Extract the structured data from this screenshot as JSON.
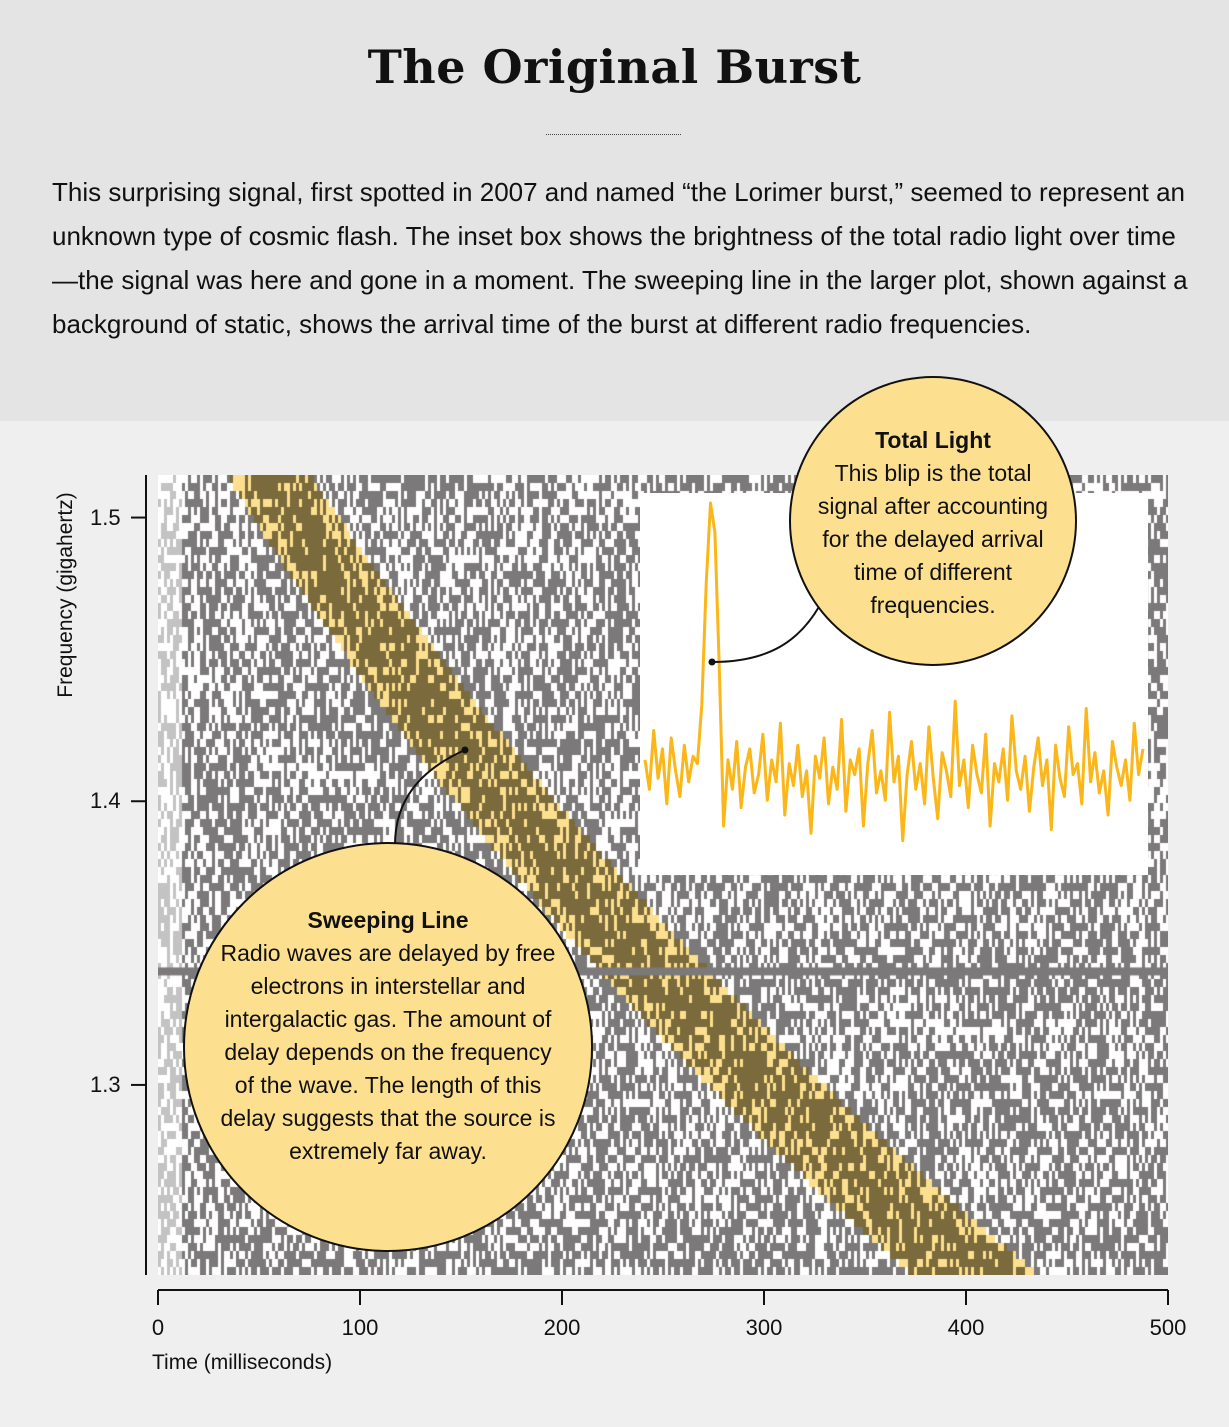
{
  "header": {
    "title": "The Original Burst",
    "description": "This surprising signal, first spotted in 2007 and named “the Lorimer burst,” seemed to represent an unknown type of cosmic flash. The inset box shows the brightness of the total radio light over time—the signal was here and gone in a moment. The sweeping line in the larger plot, shown against a background of static, shows the arrival time of the burst at different radio frequencies."
  },
  "callouts": {
    "total_light": {
      "title": "Total Light",
      "text": "This blip is the total signal after accounting for the delayed arrival time of different frequencies."
    },
    "sweeping_line": {
      "title": "Sweeping Line",
      "text": "Radio waves are delayed by free electrons in interstellar and intergalactic gas. The amount of delay depends on the frequency of the wave. The length of this delay suggests that the source is extremely far away."
    }
  },
  "colors": {
    "static": "#7b7979",
    "band": "#fde08f",
    "band_signal": "#7a6a3c",
    "inset_line": "#fbb61a",
    "header_bg": "#e4e4e4",
    "page_bg": "#efefef"
  },
  "chart_data": [
    {
      "type": "heatmap",
      "xlabel": "Time (milliseconds)",
      "ylabel": "Frequency (gigahertz)",
      "xlim": [
        0,
        500
      ],
      "ylim": [
        1.233,
        1.515
      ],
      "xticks": [
        "0",
        "100",
        "200",
        "300",
        "400",
        "500"
      ],
      "yticks": [
        "1.3",
        "1.4",
        "1.5"
      ],
      "sweep": {
        "time_at_top_ms": 55,
        "time_at_bottom_ms": 407,
        "law": "time proportional to frequency^-2"
      },
      "interference_line_ghz": 1.34
    },
    {
      "type": "line",
      "title": "",
      "values": [
        0.3,
        0.22,
        0.38,
        0.25,
        0.33,
        0.18,
        0.36,
        0.27,
        0.2,
        0.34,
        0.24,
        0.31,
        0.29,
        0.45,
        0.78,
        1.0,
        0.92,
        0.55,
        0.12,
        0.3,
        0.22,
        0.35,
        0.17,
        0.28,
        0.33,
        0.21,
        0.26,
        0.37,
        0.19,
        0.3,
        0.24,
        0.4,
        0.15,
        0.29,
        0.23,
        0.34,
        0.2,
        0.27,
        0.1,
        0.31,
        0.25,
        0.36,
        0.18,
        0.28,
        0.22,
        0.41,
        0.16,
        0.3,
        0.26,
        0.33,
        0.12,
        0.29,
        0.38,
        0.21,
        0.27,
        0.19,
        0.43,
        0.24,
        0.31,
        0.08,
        0.26,
        0.35,
        0.22,
        0.29,
        0.18,
        0.39,
        0.25,
        0.14,
        0.32,
        0.27,
        0.2,
        0.46,
        0.23,
        0.3,
        0.17,
        0.34,
        0.26,
        0.21,
        0.37,
        0.12,
        0.29,
        0.24,
        0.33,
        0.19,
        0.42,
        0.27,
        0.22,
        0.31,
        0.16,
        0.28,
        0.36,
        0.23,
        0.3,
        0.11,
        0.34,
        0.25,
        0.2,
        0.39,
        0.26,
        0.29,
        0.18,
        0.44,
        0.24,
        0.32,
        0.21,
        0.27,
        0.15,
        0.35,
        0.28,
        0.23,
        0.3,
        0.19,
        0.4,
        0.26,
        0.33
      ]
    }
  ]
}
